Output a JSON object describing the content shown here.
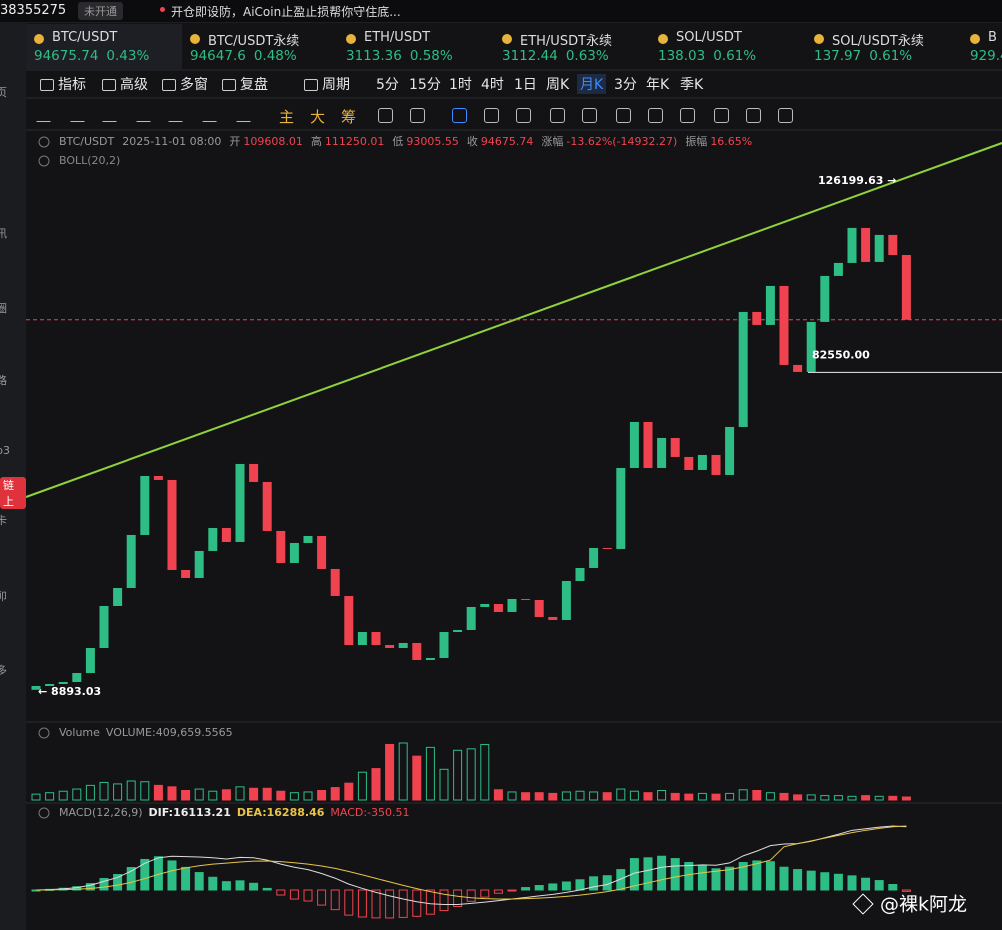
{
  "top_bar": {
    "account": "38355275",
    "badge": "未开通",
    "notice": "开仓即设防，AiCoin止盈止损帮你守住底..."
  },
  "sidebar": [
    "页",
    "讯",
    "圈",
    "路",
    "p3",
    "链上",
    "卡",
    "卯",
    "多"
  ],
  "tickers": [
    {
      "symbol": "BTC/USDT",
      "price": "94675.74",
      "change": "0.43%"
    },
    {
      "symbol": "BTC/USDT永续",
      "price": "94647.6",
      "change": "0.48%"
    },
    {
      "symbol": "ETH/USDT",
      "price": "3113.36",
      "change": "0.58%"
    },
    {
      "symbol": "ETH/USDT永续",
      "price": "3112.44",
      "change": "0.63%"
    },
    {
      "symbol": "SOL/USDT",
      "price": "138.03",
      "change": "0.61%"
    },
    {
      "symbol": "SOL/USDT永续",
      "price": "137.97",
      "change": "0.61%"
    },
    {
      "symbol": "B",
      "price": "929.4",
      "change": ""
    }
  ],
  "toolbar": [
    "指标",
    "高级",
    "多窗",
    "复盘",
    "周期"
  ],
  "periods": [
    "5分",
    "15分",
    "1时",
    "4时",
    "1日",
    "周K",
    "月K",
    "3分",
    "年K",
    "季K"
  ],
  "active_period": 6,
  "draw_tools": [
    "主",
    "大",
    "筹"
  ],
  "info": {
    "symbol": "BTC/USDT",
    "datetime": "2025-11-01 08:00",
    "open_label": "开",
    "open": 109608.01,
    "high_label": "高",
    "high": 111250.01,
    "low_label": "低",
    "low": 93005.55,
    "close_label": "收",
    "close": 94675.74,
    "change_label": "涨幅",
    "change": "-13.62%(-14932.27)",
    "amp_label": "振幅",
    "amp": "16.65%"
  },
  "boll": "BOLL(20,2)",
  "chart": {
    "type": "candlestick",
    "up_color": "#2ebd85",
    "down_color": "#f0434f",
    "trend_color": "#8fd33a",
    "candles": {
      "first_open": 9400,
      "close": [
        10276,
        10737,
        11198,
        13273,
        19035,
        28716,
        32865,
        45082,
        58681,
        57759,
        37014,
        35170,
        41394,
        46695,
        43468,
        61447,
        57298,
        46004,
        38628,
        43238,
        44851,
        37245,
        31021,
        19727,
        22723,
        19727,
        19035,
        20188,
        16269,
        16730,
        22723,
        23184,
        28486,
        29177,
        27333,
        30330,
        30099,
        26181,
        25489,
        34479,
        37475,
        42085,
        41855,
        60525,
        71128,
        60525,
        67440,
        63061,
        60064,
        63522,
        58912,
        69976,
        96483,
        93487,
        102476,
        84267,
        82653,
        94178,
        104781,
        107778,
        115845,
        108008,
        114232,
        109608.01,
        94675.74
      ]
    },
    "high_label": {
      "value": 126199.63,
      "label": "126199.63 →"
    },
    "low_label": {
      "value": 8893.03,
      "label": "← 8893.03"
    },
    "level": {
      "value": 82550,
      "label": "82550.00"
    },
    "volume": {
      "title": "Volume",
      "name": "VOLUME:",
      "last_label": "409,659.5565",
      "values": [
        800000,
        1000000,
        1200000,
        1500000,
        2000000,
        2400000,
        2200000,
        2600000,
        2500000,
        2000000,
        1800000,
        1300000,
        1500000,
        1200000,
        1400000,
        1800000,
        1600000,
        1600000,
        1200000,
        1000000,
        1100000,
        1300000,
        1700000,
        2300000,
        3800000,
        4300000,
        7600000,
        7800000,
        6000000,
        7200000,
        4200000,
        6800000,
        7000000,
        7600000,
        1400000,
        1100000,
        1000000,
        1000000,
        900000,
        1100000,
        1200000,
        1100000,
        1000000,
        1500000,
        1200000,
        1000000,
        1300000,
        900000,
        800000,
        900000,
        800000,
        900000,
        1400000,
        1300000,
        1000000,
        900000,
        700000,
        700000,
        600000,
        600000,
        500000,
        600000,
        500000,
        500000,
        409659.5565
      ]
    },
    "macd": {
      "title": "MACD(12,26,9)",
      "dif_name": "DIF:",
      "dea_name": "DEA:",
      "macd_name": "MACD:",
      "dif": [
        0,
        100,
        300,
        600,
        1200,
        2200,
        3200,
        4800,
        6800,
        8200,
        8600,
        8500,
        8400,
        8200,
        7900,
        8300,
        8200,
        7600,
        6600,
        5800,
        5200,
        4200,
        3000,
        1500,
        400,
        -600,
        -1500,
        -2300,
        -3000,
        -3500,
        -3700,
        -3700,
        -3400,
        -3100,
        -2700,
        -2300,
        -1900,
        -1500,
        -1100,
        -600,
        0,
        800,
        1400,
        2800,
        4300,
        5000,
        5800,
        6100,
        6200,
        6400,
        6300,
        6900,
        8700,
        9900,
        11300,
        11700,
        11800,
        12400,
        13300,
        14200,
        15200,
        15600,
        16000,
        16300,
        16113.21
      ],
      "dea": [
        0,
        20,
        80,
        180,
        380,
        740,
        1230,
        1940,
        2910,
        3970,
        4900,
        5620,
        6180,
        6580,
        6840,
        7130,
        7350,
        7400,
        7240,
        6950,
        6600,
        6120,
        5500,
        4700,
        3840,
        2950,
        2060,
        1190,
        350,
        -420,
        -1080,
        -1600,
        -1960,
        -2190,
        -2290,
        -2290,
        -2210,
        -2070,
        -1870,
        -1620,
        -1300,
        -880,
        -420,
        220,
        1040,
        1830,
        2620,
        3320,
        3900,
        4400,
        4780,
        5200,
        5900,
        6700,
        7620,
        11000,
        11800,
        12500,
        13200,
        13900,
        14600,
        15200,
        15700,
        16100,
        16288.46
      ],
      "hist": [
        0,
        160,
        440,
        840,
        1640,
        2920,
        3940,
        5720,
        7780,
        8460,
        7400,
        5760,
        4440,
        3240,
        2120,
        2340,
        1700,
        400,
        -1280,
        -2300,
        -2800,
        -3840,
        -5000,
        -6400,
        -6880,
        -7100,
        -7120,
        -6980,
        -6700,
        -6160,
        -5240,
        -4200,
        -2880,
        -1820,
        -820,
        -20,
        620,
        1140,
        1540,
        2040,
        2600,
        3360,
        3640,
        5200,
        8000,
        8200,
        8600,
        8000,
        7000,
        6200,
        5400,
        5800,
        7000,
        7400,
        7200,
        5800,
        5200,
        4800,
        4400,
        4000,
        3600,
        3000,
        2400,
        1400,
        -350.51
      ]
    }
  },
  "watermark": "@裸k阿龙"
}
